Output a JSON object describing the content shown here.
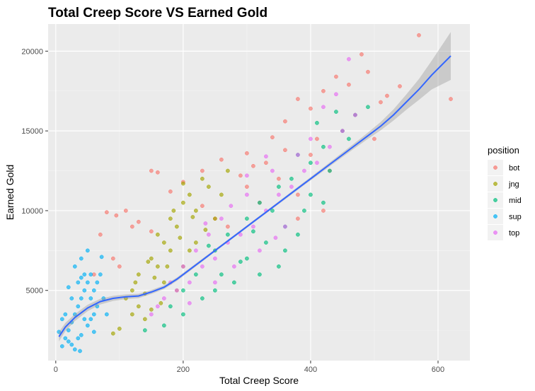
{
  "chart_data": {
    "type": "scatter",
    "title": "Total Creep Score VS Earned Gold",
    "xlabel": "Total Creep Score",
    "ylabel": "Earned Gold",
    "xlim": [
      -12,
      650
    ],
    "ylim": [
      600,
      21700
    ],
    "xticks": [
      0,
      200,
      400,
      600
    ],
    "xtick_labels": [
      "0",
      "200",
      "400",
      "600"
    ],
    "yticks": [
      5000,
      10000,
      15000,
      20000
    ],
    "ytick_labels": [
      "5000",
      "10000",
      "15000",
      "20000"
    ],
    "grid": true,
    "legend": {
      "title": "position",
      "placement": "right"
    },
    "series": [
      {
        "name": "bot",
        "color": "#F8766D",
        "points": [
          [
            80,
            9900
          ],
          [
            95,
            9700
          ],
          [
            110,
            10000
          ],
          [
            120,
            9000
          ],
          [
            130,
            9300
          ],
          [
            150,
            8700
          ],
          [
            160,
            12400
          ],
          [
            150,
            12500
          ],
          [
            180,
            11200
          ],
          [
            200,
            11800
          ],
          [
            230,
            12500
          ],
          [
            260,
            13200
          ],
          [
            300,
            13600
          ],
          [
            340,
            14600
          ],
          [
            360,
            15600
          ],
          [
            380,
            17000
          ],
          [
            400,
            16400
          ],
          [
            420,
            17500
          ],
          [
            440,
            18400
          ],
          [
            460,
            17900
          ],
          [
            480,
            19800
          ],
          [
            490,
            18700
          ],
          [
            510,
            16800
          ],
          [
            520,
            17200
          ],
          [
            540,
            17800
          ],
          [
            570,
            21000
          ],
          [
            620,
            17000
          ],
          [
            300,
            11500
          ],
          [
            350,
            12000
          ],
          [
            400,
            13500
          ],
          [
            450,
            15000
          ],
          [
            500,
            14500
          ],
          [
            270,
            9000
          ],
          [
            320,
            10500
          ],
          [
            380,
            11000
          ],
          [
            430,
            12500
          ],
          [
            250,
            9500
          ],
          [
            290,
            12200
          ],
          [
            330,
            13000
          ],
          [
            410,
            14500
          ],
          [
            470,
            16000
          ],
          [
            90,
            7000
          ],
          [
            100,
            6500
          ],
          [
            60,
            6000
          ],
          [
            70,
            8500
          ],
          [
            380,
            9500
          ],
          [
            420,
            10000
          ],
          [
            360,
            13800
          ],
          [
            310,
            12800
          ],
          [
            230,
            10300
          ]
        ]
      },
      {
        "name": "jng",
        "color": "#A3A500",
        "points": [
          [
            110,
            4500
          ],
          [
            120,
            5000
          ],
          [
            130,
            6000
          ],
          [
            140,
            4800
          ],
          [
            150,
            7000
          ],
          [
            160,
            6500
          ],
          [
            170,
            8000
          ],
          [
            180,
            7500
          ],
          [
            190,
            9000
          ],
          [
            200,
            10500
          ],
          [
            210,
            11000
          ],
          [
            220,
            10000
          ],
          [
            230,
            12000
          ],
          [
            240,
            11500
          ],
          [
            150,
            3800
          ],
          [
            140,
            3200
          ],
          [
            120,
            3500
          ],
          [
            100,
            2600
          ],
          [
            90,
            2300
          ],
          [
            170,
            5500
          ],
          [
            180,
            9500
          ],
          [
            160,
            8500
          ],
          [
            200,
            6500
          ],
          [
            190,
            5000
          ],
          [
            260,
            11000
          ],
          [
            250,
            9500
          ],
          [
            130,
            4000
          ],
          [
            210,
            7500
          ],
          [
            175,
            6500
          ],
          [
            155,
            5800
          ],
          [
            145,
            6800
          ],
          [
            235,
            8800
          ],
          [
            270,
            12500
          ],
          [
            200,
            11700
          ],
          [
            220,
            8000
          ],
          [
            185,
            10000
          ],
          [
            165,
            4200
          ],
          [
            125,
            5500
          ],
          [
            195,
            8300
          ],
          [
            215,
            9600
          ]
        ]
      },
      {
        "name": "mid",
        "color": "#00BF7D",
        "points": [
          [
            180,
            4000
          ],
          [
            200,
            5000
          ],
          [
            220,
            6000
          ],
          [
            250,
            7500
          ],
          [
            270,
            8500
          ],
          [
            300,
            9500
          ],
          [
            320,
            10500
          ],
          [
            350,
            11500
          ],
          [
            370,
            12000
          ],
          [
            400,
            13000
          ],
          [
            420,
            14000
          ],
          [
            450,
            15000
          ],
          [
            470,
            16000
          ],
          [
            490,
            16500
          ],
          [
            300,
            7000
          ],
          [
            330,
            8000
          ],
          [
            360,
            9000
          ],
          [
            380,
            8500
          ],
          [
            350,
            6500
          ],
          [
            320,
            6000
          ],
          [
            280,
            5500
          ],
          [
            250,
            5000
          ],
          [
            230,
            4500
          ],
          [
            200,
            3500
          ],
          [
            170,
            2800
          ],
          [
            140,
            2500
          ],
          [
            400,
            11000
          ],
          [
            430,
            12500
          ],
          [
            460,
            14500
          ],
          [
            420,
            10500
          ],
          [
            390,
            10000
          ],
          [
            340,
            10000
          ],
          [
            310,
            8700
          ],
          [
            380,
            13500
          ],
          [
            410,
            15500
          ],
          [
            440,
            16200
          ],
          [
            360,
            7500
          ],
          [
            290,
            6800
          ],
          [
            260,
            6000
          ],
          [
            240,
            7800
          ]
        ]
      },
      {
        "name": "sup",
        "color": "#00B0F6",
        "points": [
          [
            10,
            1500
          ],
          [
            15,
            2000
          ],
          [
            20,
            2500
          ],
          [
            25,
            3000
          ],
          [
            30,
            3500
          ],
          [
            35,
            4000
          ],
          [
            40,
            4500
          ],
          [
            45,
            5000
          ],
          [
            50,
            5500
          ],
          [
            55,
            6000
          ],
          [
            60,
            5000
          ],
          [
            65,
            4000
          ],
          [
            30,
            1300
          ],
          [
            20,
            1800
          ],
          [
            40,
            2200
          ],
          [
            50,
            2800
          ],
          [
            60,
            3500
          ],
          [
            55,
            4500
          ],
          [
            45,
            6000
          ],
          [
            35,
            5500
          ],
          [
            25,
            4500
          ],
          [
            15,
            3500
          ],
          [
            40,
            7000
          ],
          [
            50,
            7500
          ],
          [
            70,
            6000
          ],
          [
            75,
            4500
          ],
          [
            80,
            3500
          ],
          [
            5,
            2400
          ],
          [
            10,
            3200
          ],
          [
            30,
            6500
          ],
          [
            45,
            3200
          ],
          [
            35,
            2000
          ],
          [
            25,
            1600
          ],
          [
            65,
            5500
          ],
          [
            55,
            3200
          ],
          [
            20,
            5200
          ],
          [
            40,
            5800
          ],
          [
            60,
            2400
          ],
          [
            38,
            1200
          ],
          [
            72,
            7100
          ]
        ]
      },
      {
        "name": "top",
        "color": "#E76BF3",
        "points": [
          [
            150,
            3500
          ],
          [
            170,
            4500
          ],
          [
            190,
            5000
          ],
          [
            210,
            5500
          ],
          [
            230,
            6500
          ],
          [
            250,
            7000
          ],
          [
            270,
            8000
          ],
          [
            290,
            8500
          ],
          [
            310,
            9000
          ],
          [
            330,
            10000
          ],
          [
            350,
            11000
          ],
          [
            370,
            11500
          ],
          [
            390,
            12500
          ],
          [
            410,
            13000
          ],
          [
            430,
            14000
          ],
          [
            450,
            15000
          ],
          [
            470,
            16000
          ],
          [
            460,
            19500
          ],
          [
            440,
            17300
          ],
          [
            420,
            16500
          ],
          [
            400,
            14500
          ],
          [
            380,
            13500
          ],
          [
            340,
            12500
          ],
          [
            300,
            11000
          ],
          [
            260,
            9500
          ],
          [
            240,
            8500
          ],
          [
            220,
            7500
          ],
          [
            200,
            6500
          ],
          [
            180,
            5500
          ],
          [
            160,
            4000
          ],
          [
            280,
            6500
          ],
          [
            320,
            7500
          ],
          [
            360,
            9000
          ],
          [
            250,
            5500
          ],
          [
            210,
            4200
          ],
          [
            300,
            12200
          ],
          [
            330,
            13400
          ],
          [
            275,
            10300
          ],
          [
            235,
            9200
          ],
          [
            345,
            8300
          ]
        ]
      }
    ],
    "trend": {
      "color": "#3366FF",
      "band_color": "#999999",
      "x": [
        5,
        15,
        30,
        50,
        70,
        90,
        110,
        130,
        150,
        170,
        190,
        210,
        230,
        250,
        270,
        290,
        310,
        330,
        350,
        370,
        390,
        410,
        430,
        450,
        470,
        490,
        510,
        530,
        550,
        570,
        590,
        620
      ],
      "y": [
        2100,
        2700,
        3300,
        3900,
        4300,
        4500,
        4600,
        4650,
        4900,
        5200,
        5700,
        6300,
        6900,
        7500,
        8100,
        8700,
        9300,
        9900,
        10500,
        11100,
        11700,
        12300,
        12900,
        13500,
        14100,
        14700,
        15300,
        16000,
        16800,
        17600,
        18500,
        19700
      ],
      "ci": [
        300,
        260,
        220,
        200,
        180,
        160,
        150,
        140,
        130,
        120,
        110,
        100,
        90,
        80,
        80,
        80,
        80,
        80,
        85,
        90,
        100,
        110,
        120,
        140,
        160,
        200,
        260,
        350,
        480,
        650,
        900,
        1500
      ]
    }
  }
}
